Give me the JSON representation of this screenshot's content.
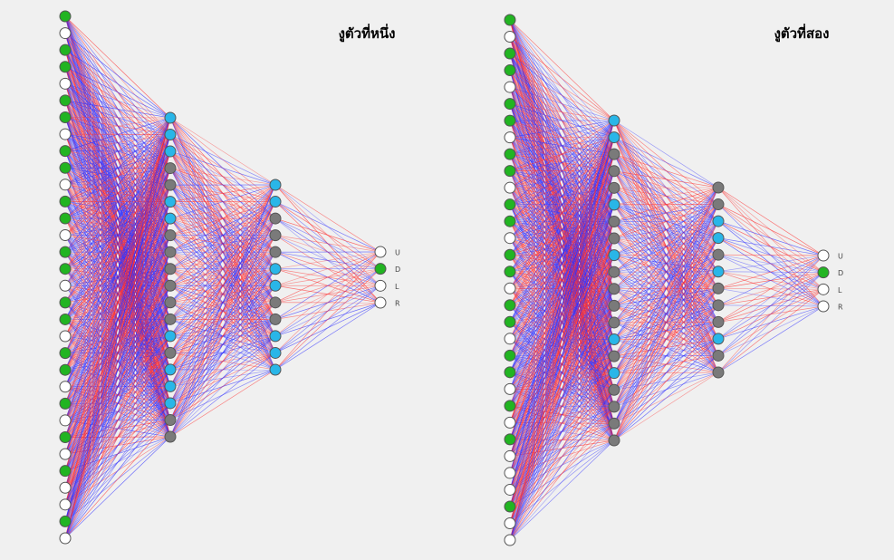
{
  "networks": [
    {
      "title": "งูตัวที่หนึ่ง",
      "layers": [
        [
          "green",
          "white",
          "green",
          "green",
          "white",
          "green",
          "green",
          "white",
          "green",
          "green",
          "white",
          "green",
          "green",
          "white",
          "green",
          "green",
          "white",
          "green",
          "green",
          "white",
          "green",
          "green",
          "white",
          "green",
          "white",
          "green",
          "white",
          "green",
          "white",
          "white",
          "green",
          "white"
        ],
        [
          "blue",
          "blue",
          "blue",
          "gray",
          "gray",
          "blue",
          "blue",
          "gray",
          "gray",
          "gray",
          "gray",
          "gray",
          "gray",
          "blue",
          "gray",
          "blue",
          "blue",
          "blue",
          "gray",
          "gray"
        ],
        [
          "blue",
          "blue",
          "gray",
          "gray",
          "gray",
          "blue",
          "blue",
          "gray",
          "gray",
          "blue",
          "blue",
          "blue"
        ],
        [
          "white",
          "green",
          "white",
          "white"
        ]
      ],
      "outputs": [
        "U",
        "D",
        "L",
        "R"
      ]
    },
    {
      "title": "งูตัวที่สอง",
      "layers": [
        [
          "green",
          "white",
          "green",
          "green",
          "white",
          "green",
          "green",
          "white",
          "green",
          "green",
          "white",
          "green",
          "green",
          "white",
          "green",
          "green",
          "white",
          "green",
          "green",
          "white",
          "green",
          "green",
          "white",
          "green",
          "white",
          "green",
          "white",
          "white",
          "white",
          "green",
          "white",
          "white"
        ],
        [
          "blue",
          "blue",
          "gray",
          "gray",
          "gray",
          "blue",
          "gray",
          "gray",
          "blue",
          "gray",
          "gray",
          "gray",
          "gray",
          "blue",
          "gray",
          "blue",
          "gray",
          "gray",
          "gray",
          "gray"
        ],
        [
          "gray",
          "gray",
          "blue",
          "blue",
          "gray",
          "blue",
          "gray",
          "gray",
          "gray",
          "blue",
          "gray",
          "gray"
        ],
        [
          "white",
          "green",
          "white",
          "white"
        ]
      ],
      "outputs": [
        "U",
        "D",
        "L",
        "R"
      ]
    }
  ]
}
